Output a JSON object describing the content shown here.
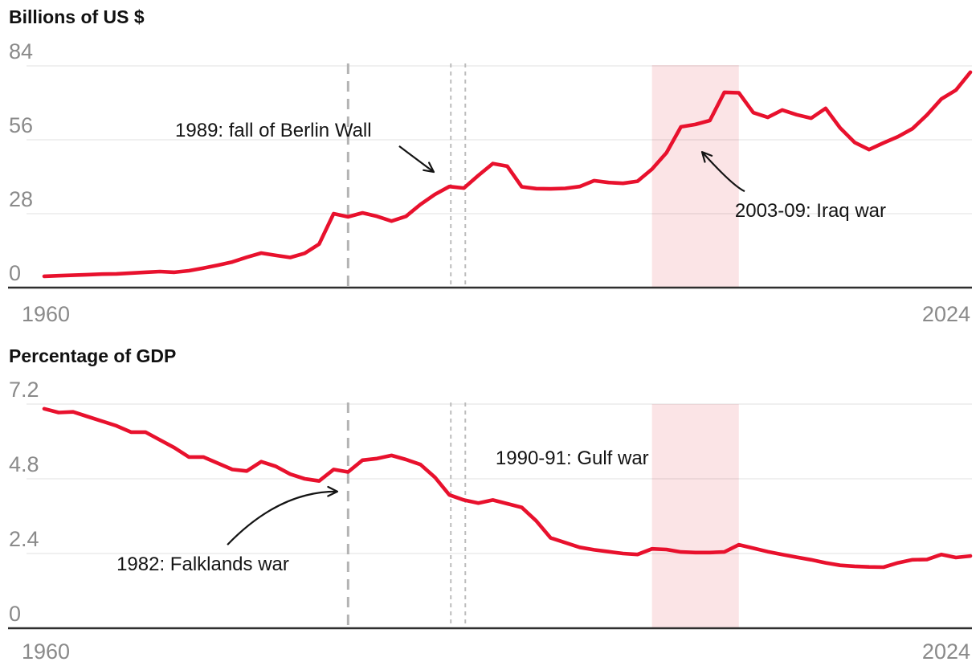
{
  "colors": {
    "line_red": "#e8112d",
    "band_pink": "#fbe4e6",
    "dashed_line": "#b3b3b3",
    "dotted_line": "#bdbdbd",
    "gridline": "#e6e6e6",
    "axis": "#2e2e2e",
    "tick_label": "#8a8a8a",
    "title_text": "#111111",
    "annotation_text": "#141414"
  },
  "chart_data": [
    {
      "type": "line",
      "title": "Billions of US $",
      "x_years": {
        "start": 1960,
        "end": 2024,
        "step": 1
      },
      "xtick_labels": [
        "1960",
        "2024"
      ],
      "ylim": [
        0,
        84
      ],
      "yticks": [
        0,
        28,
        56,
        84
      ],
      "ytick_labels": [
        "0",
        "28",
        "56",
        "84"
      ],
      "grid": "horizontal",
      "series": [
        {
          "color": "#e8112d",
          "values": [
            4.3,
            4.5,
            4.7,
            4.9,
            5.1,
            5.2,
            5.5,
            5.8,
            6.1,
            5.8,
            6.4,
            7.4,
            8.5,
            9.7,
            11.5,
            13.1,
            12.2,
            11.4,
            13.0,
            16.5,
            28.0,
            26.8,
            28.3,
            27.0,
            25.2,
            27.0,
            31.5,
            35.3,
            38.3,
            37.7,
            42.5,
            47.0,
            46.0,
            38.2,
            37.5,
            37.4,
            37.6,
            38.3,
            40.5,
            39.8,
            39.5,
            40.3,
            44.9,
            51.1,
            60.9,
            61.8,
            63.3,
            74.0,
            73.8,
            66.3,
            64.5,
            67.3,
            65.5,
            64.2,
            67.9,
            60.5,
            55.0,
            52.3,
            54.8,
            57.2,
            60.2,
            65.4,
            71.5,
            74.8,
            81.6
          ]
        }
      ],
      "event_markers": [
        {
          "style": "dashed",
          "x_year": 1981.0
        },
        {
          "style": "dotted",
          "x_year": 1988.1
        },
        {
          "style": "dotted",
          "x_year": 1989.1
        },
        {
          "style": "band",
          "x_year_start": 2002.0,
          "x_year_end": 2008.0
        }
      ],
      "annotations": [
        {
          "text": "1989: fall of Berlin Wall",
          "x_year": 1969.05,
          "y_value": 63.9,
          "arrow": {
            "from_x": 1984.53,
            "from_y": 53.6,
            "ctrl_x": 1985.72,
            "ctrl_y": 48.7,
            "to_x": 1986.92,
            "to_y": 43.8
          }
        },
        {
          "text": "2003-09: Iraq war",
          "x_year": 2007.73,
          "y_value": 33.5,
          "arrow": {
            "from_x": 2008.4,
            "from_y": 36.5,
            "ctrl_x": 2007.57,
            "ctrl_y": 38.6,
            "to_x": 2005.46,
            "to_y": 51.4
          }
        }
      ]
    },
    {
      "type": "line",
      "title": "Percentage of GDP",
      "x_years": {
        "start": 1960,
        "end": 2024,
        "step": 1
      },
      "xtick_labels": [
        "1960",
        "2024"
      ],
      "ylim": [
        0,
        7.2
      ],
      "yticks": [
        0,
        2.4,
        4.8,
        7.2
      ],
      "ytick_labels": [
        "0",
        "2.4",
        "4.8",
        "7.2"
      ],
      "grid": "horizontal",
      "series": [
        {
          "color": "#e8112d",
          "values": [
            7.05,
            6.93,
            6.95,
            6.8,
            6.65,
            6.5,
            6.3,
            6.3,
            6.05,
            5.8,
            5.5,
            5.5,
            5.3,
            5.1,
            5.05,
            5.35,
            5.2,
            4.95,
            4.8,
            4.73,
            5.1,
            5.02,
            5.4,
            5.45,
            5.55,
            5.42,
            5.26,
            4.85,
            4.28,
            4.12,
            4.02,
            4.12,
            4.0,
            3.88,
            3.45,
            2.9,
            2.75,
            2.6,
            2.52,
            2.46,
            2.4,
            2.37,
            2.55,
            2.53,
            2.45,
            2.43,
            2.43,
            2.45,
            2.68,
            2.57,
            2.46,
            2.37,
            2.28,
            2.2,
            2.1,
            2.02,
            1.99,
            1.97,
            1.96,
            2.1,
            2.2,
            2.21,
            2.37,
            2.27,
            2.32
          ]
        }
      ],
      "event_markers": [
        {
          "style": "dashed",
          "x_year": 1981.0
        },
        {
          "style": "dotted",
          "x_year": 1988.1
        },
        {
          "style": "dotted",
          "x_year": 1989.1
        },
        {
          "style": "band",
          "x_year_start": 2002.0,
          "x_year_end": 2008.0
        }
      ],
      "annotations": [
        {
          "text": "1990-91: Gulf war",
          "x_year": 1991.19,
          "y_value": 5.83,
          "arrow": null
        },
        {
          "text": "1982: Falklands war",
          "x_year": 1965.0,
          "y_value": 2.43,
          "arrow": {
            "from_x": 1972.66,
            "from_y": 2.68,
            "ctrl_x": 1976.26,
            "ctrl_y": 4.41,
            "to_x": 1980.26,
            "to_y": 4.39
          }
        }
      ]
    }
  ]
}
